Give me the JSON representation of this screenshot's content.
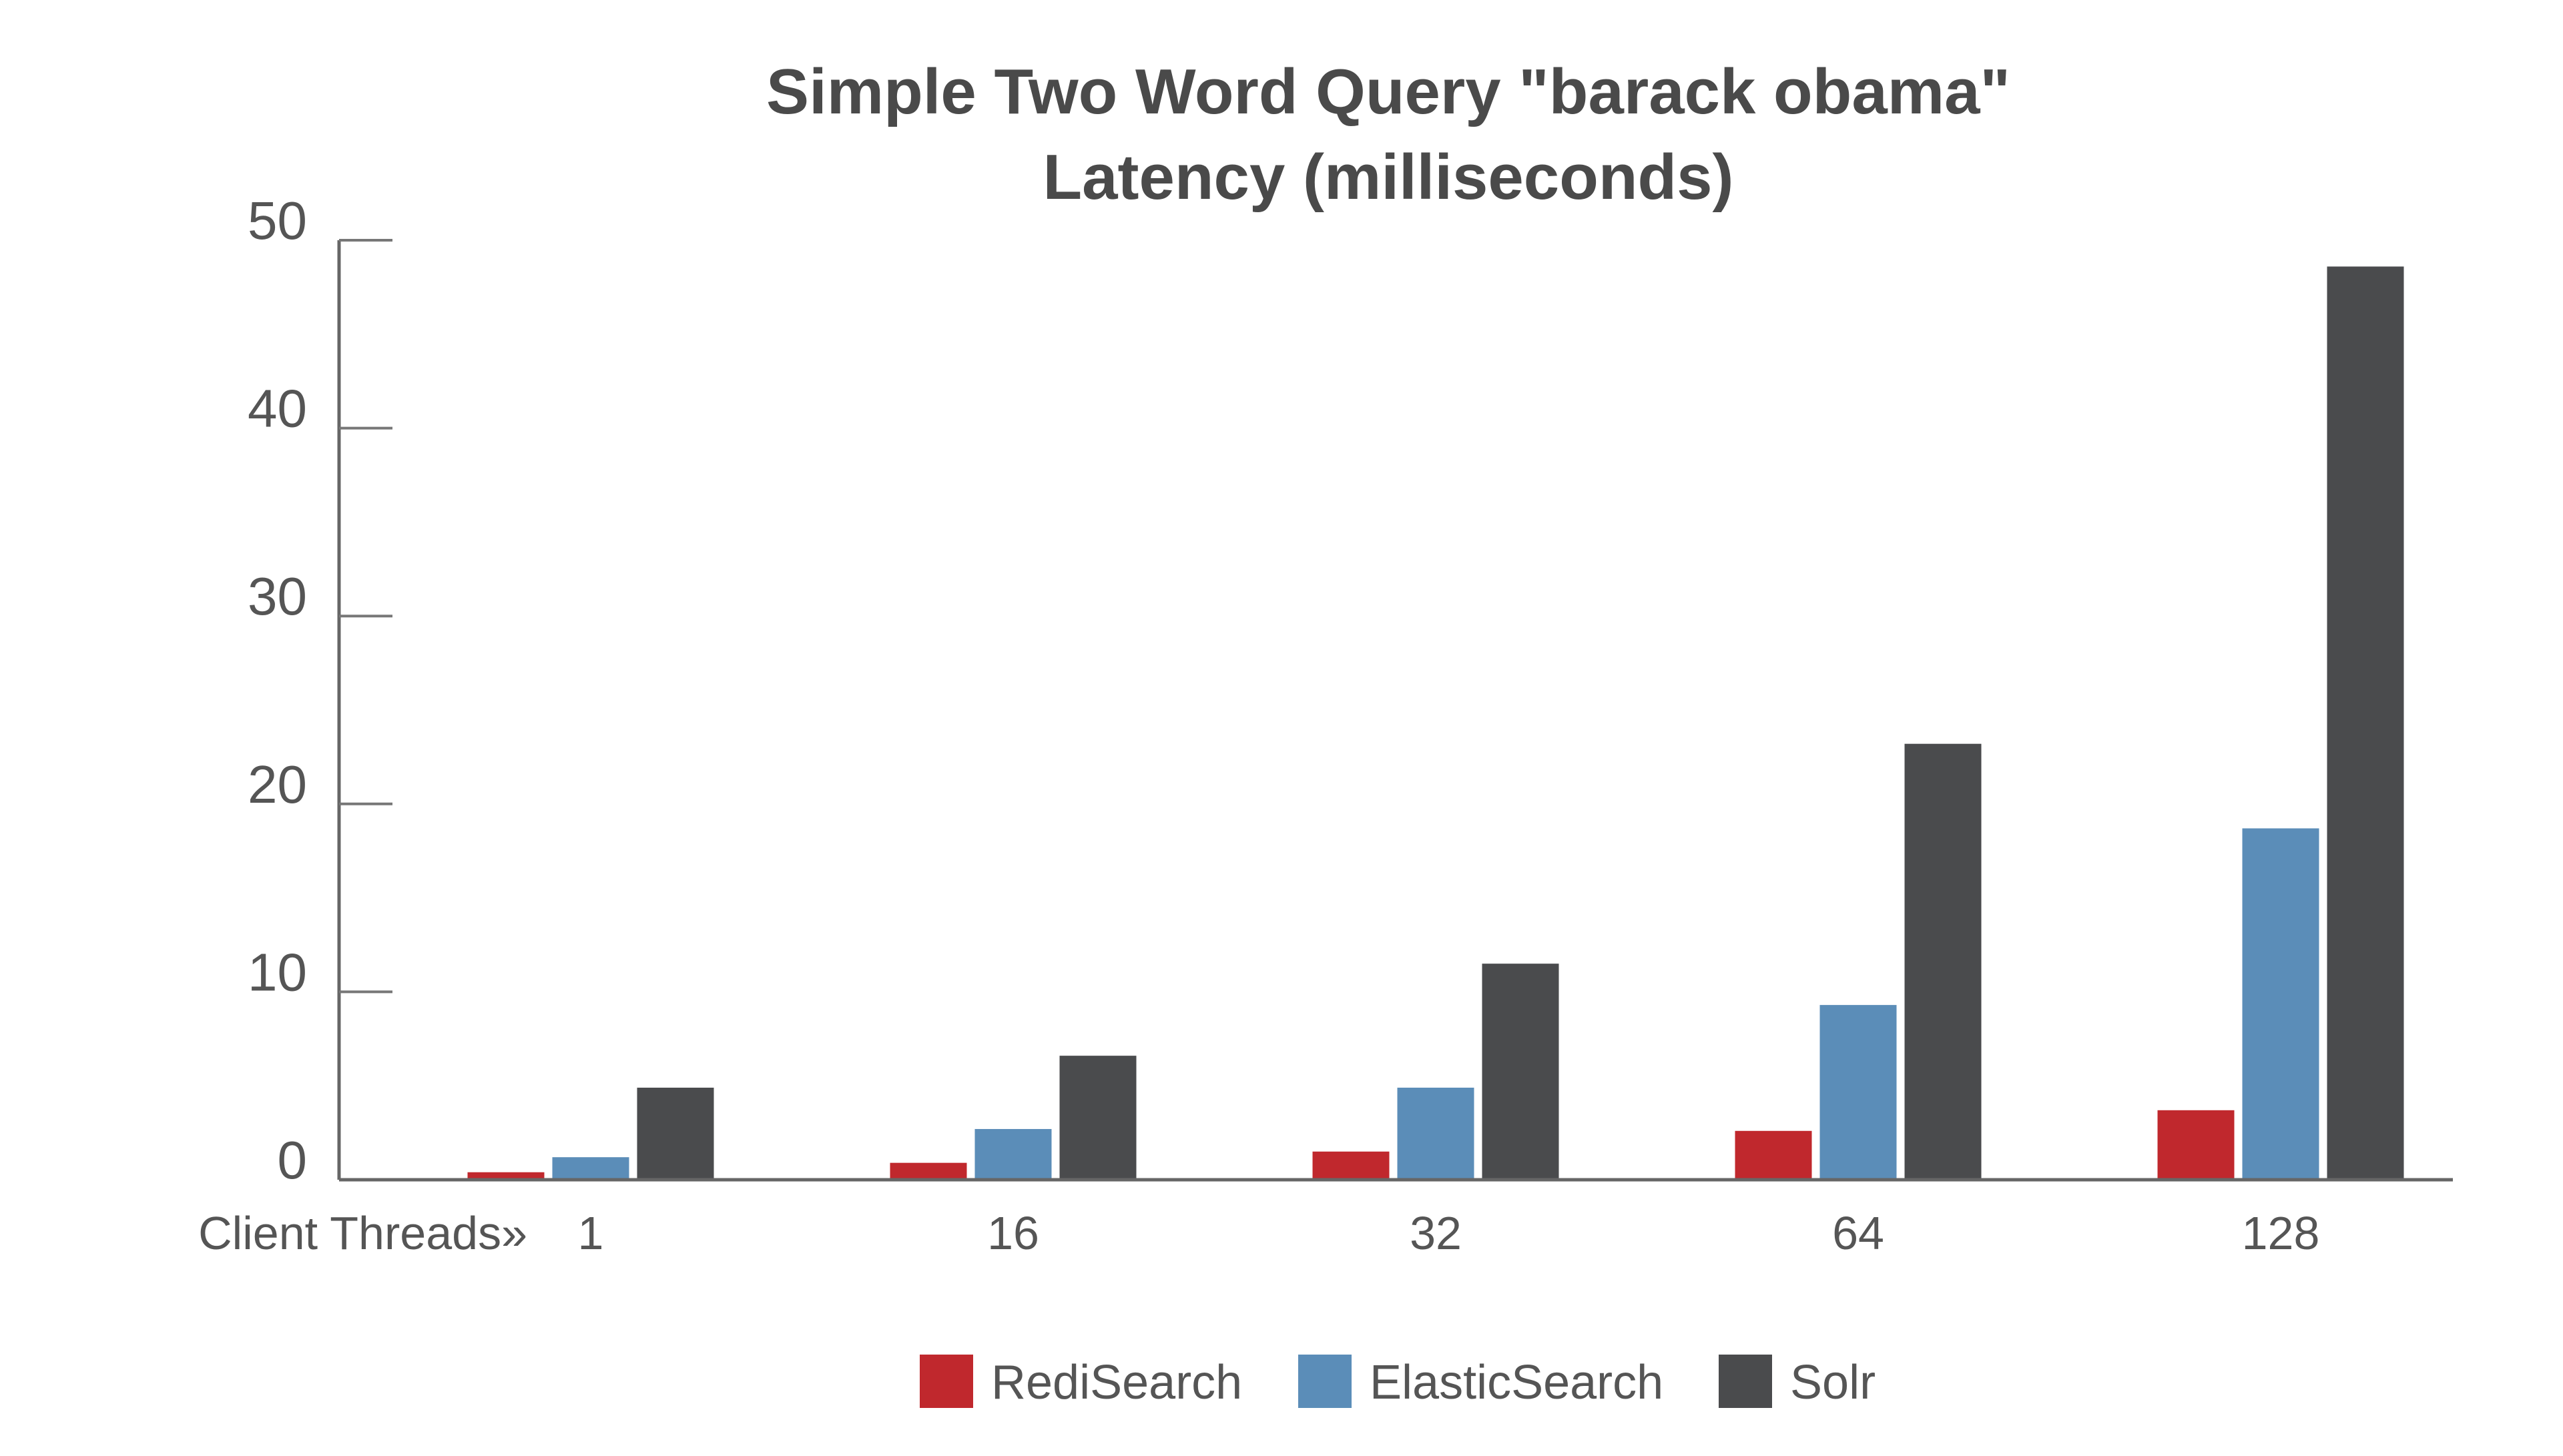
{
  "chart_data": {
    "type": "bar",
    "title_lines": [
      "Simple Two Word Query \"barack obama\"",
      "Latency (milliseconds)"
    ],
    "xlabel": "Client Threads»",
    "ylabel": "",
    "categories": [
      "1",
      "16",
      "32",
      "64",
      "128"
    ],
    "ylim": [
      0,
      50
    ],
    "yticks": [
      "0",
      "10",
      "20",
      "30",
      "40",
      "50"
    ],
    "grid": false,
    "legend_position": "bottom-center",
    "series": [
      {
        "name": "RediSearch",
        "color": "#c0282d",
        "values": [
          0.4,
          0.9,
          1.5,
          2.6,
          3.7
        ]
      },
      {
        "name": "ElasticSearch",
        "color": "#5b8db8",
        "values": [
          1.2,
          2.7,
          4.9,
          9.3,
          18.7
        ]
      },
      {
        "name": "Solr",
        "color": "#4a4b4d",
        "values": [
          4.9,
          6.6,
          11.5,
          23.2,
          48.6
        ]
      }
    ]
  }
}
